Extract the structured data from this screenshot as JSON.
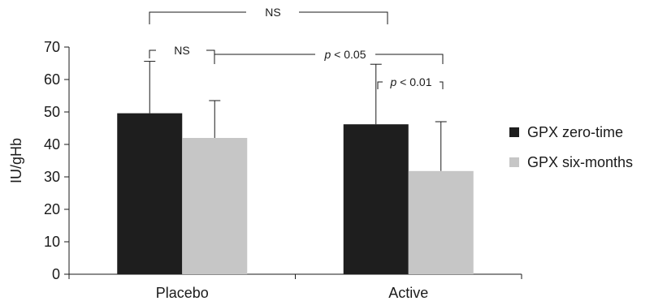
{
  "chart_data": {
    "type": "bar",
    "title": "",
    "xlabel": "",
    "ylabel": "IU/gHb",
    "ylim": [
      0,
      70
    ],
    "yticks": [
      0,
      10,
      20,
      30,
      40,
      50,
      60,
      70
    ],
    "categories": [
      "Placebo",
      "Active"
    ],
    "series": [
      {
        "name": "GPX zero-time",
        "values": [
          49.6,
          46.2
        ],
        "error_plus": [
          16.0,
          18.5
        ],
        "color": "#1e1e1e"
      },
      {
        "name": "GPX six-months",
        "values": [
          42.0,
          31.8
        ],
        "error_plus": [
          11.5,
          15.2
        ],
        "color": "#c6c6c6"
      }
    ],
    "legend_position": "right",
    "grid": false,
    "annotations": [
      {
        "label": "NS",
        "between": "Placebo GPX zero-time vs Active GPX zero-time"
      },
      {
        "label": "NS",
        "between": "Placebo GPX zero-time vs Placebo GPX six-months"
      },
      {
        "label": "p < 0.05",
        "p_label": "p",
        "rest": " < 0.05",
        "between": "Placebo GPX six-months vs Active GPX six-months"
      },
      {
        "label": "p < 0.01",
        "p_label": "p",
        "rest": " < 0.01",
        "between": "Active GPX zero-time vs Active GPX six-months"
      }
    ]
  }
}
